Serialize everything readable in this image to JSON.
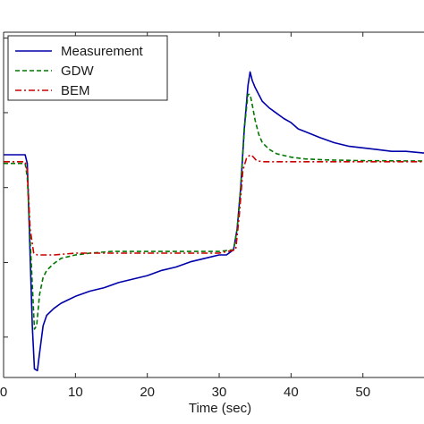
{
  "chart_data": {
    "type": "line",
    "title": "",
    "xlabel": "Time (sec)",
    "ylabel": "",
    "xlim": [
      0,
      58.5
    ],
    "ylim": [
      0,
      1
    ],
    "x_ticks": [
      0,
      10,
      20,
      30,
      40,
      50
    ],
    "x_tick_labels": [
      "0",
      "10",
      "20",
      "30",
      "40",
      "50"
    ],
    "y_ticks": [
      0.117,
      0.333,
      0.55,
      0.767,
      0.983
    ],
    "grid": false,
    "legend_position": "top-left",
    "legend": [
      "Measurement",
      "GDW",
      "BEM"
    ],
    "series": [
      {
        "name": "Measurement",
        "color": "#0000aa",
        "dash": "solid",
        "x": [
          0,
          3,
          3.3,
          4,
          4.3,
          4.7,
          5,
          5.5,
          6,
          7,
          8,
          9,
          10,
          12,
          14,
          16,
          18,
          20,
          22,
          24,
          26,
          28,
          30,
          31,
          32,
          32.5,
          33,
          33.5,
          34,
          34.3,
          34.6,
          35,
          35.5,
          36,
          37,
          38,
          39,
          40,
          41,
          42,
          44,
          46,
          48,
          50,
          52,
          54,
          56,
          58.5
        ],
        "y": [
          0.645,
          0.645,
          0.62,
          0.15,
          0.025,
          0.02,
          0.07,
          0.15,
          0.18,
          0.2,
          0.215,
          0.225,
          0.235,
          0.25,
          0.26,
          0.275,
          0.285,
          0.295,
          0.31,
          0.32,
          0.335,
          0.345,
          0.355,
          0.355,
          0.37,
          0.43,
          0.55,
          0.72,
          0.845,
          0.885,
          0.86,
          0.84,
          0.82,
          0.8,
          0.78,
          0.765,
          0.75,
          0.738,
          0.72,
          0.712,
          0.695,
          0.68,
          0.67,
          0.665,
          0.66,
          0.655,
          0.655,
          0.65
        ]
      },
      {
        "name": "GDW",
        "color": "#007700",
        "dash": "dashed",
        "x": [
          0,
          3,
          3.3,
          3.7,
          4.3,
          4.6,
          5,
          5.5,
          6,
          7,
          8,
          10,
          12,
          15,
          18,
          22,
          26,
          30,
          32,
          32.5,
          33,
          33.5,
          34,
          34.3,
          34.6,
          35,
          35.5,
          36,
          37,
          38,
          40,
          42,
          45,
          50,
          58.5
        ],
        "y": [
          0.62,
          0.62,
          0.58,
          0.4,
          0.14,
          0.15,
          0.24,
          0.29,
          0.31,
          0.33,
          0.345,
          0.355,
          0.36,
          0.365,
          0.365,
          0.365,
          0.365,
          0.365,
          0.37,
          0.43,
          0.55,
          0.72,
          0.82,
          0.82,
          0.79,
          0.745,
          0.705,
          0.68,
          0.66,
          0.648,
          0.638,
          0.633,
          0.63,
          0.628,
          0.627
        ]
      },
      {
        "name": "BEM",
        "color": "#cc0000",
        "dash": "dashdot",
        "x": [
          0,
          3,
          3.3,
          3.7,
          4.2,
          4.7,
          5.5,
          7,
          10,
          15,
          20,
          25,
          30,
          32.3,
          32.8,
          33.3,
          33.8,
          34.3,
          34.7,
          35.2,
          36,
          38,
          40,
          45,
          50,
          58.5
        ],
        "y": [
          0.625,
          0.625,
          0.6,
          0.43,
          0.36,
          0.355,
          0.355,
          0.355,
          0.36,
          0.36,
          0.36,
          0.36,
          0.36,
          0.37,
          0.47,
          0.6,
          0.635,
          0.645,
          0.64,
          0.628,
          0.625,
          0.625,
          0.625,
          0.625,
          0.625,
          0.625
        ]
      }
    ]
  }
}
